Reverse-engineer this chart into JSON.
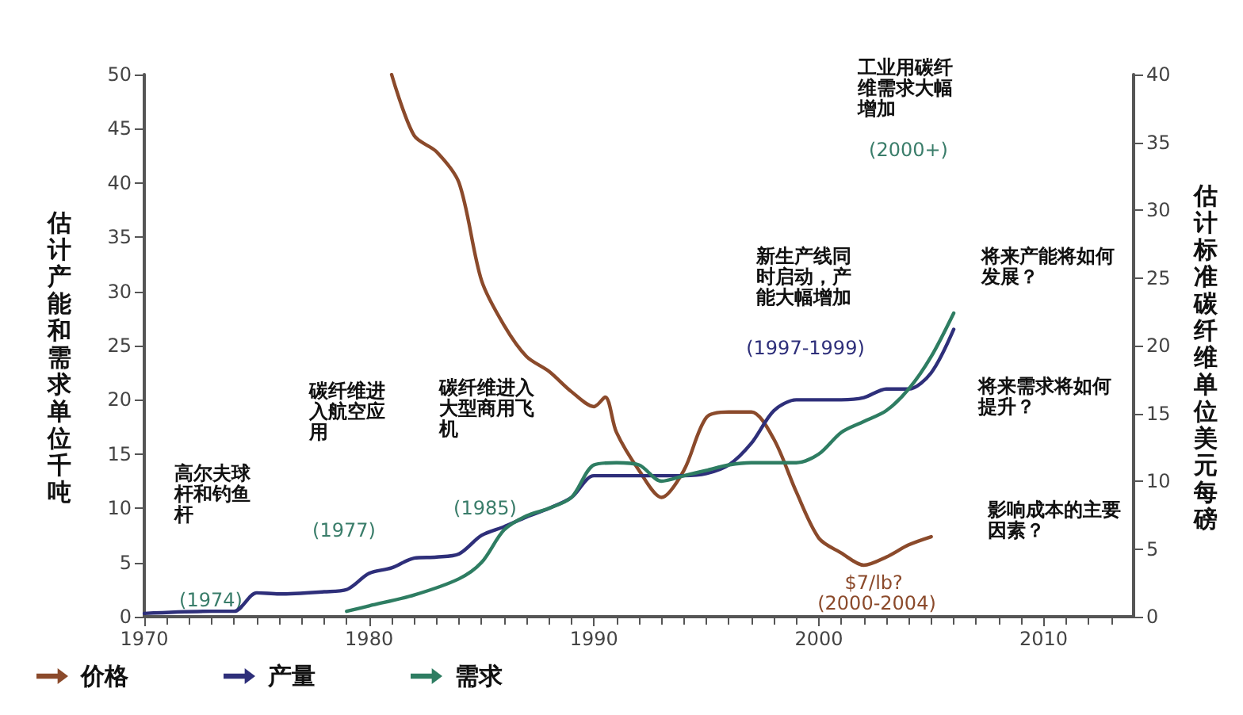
{
  "chart_data": {
    "type": "line",
    "ylabel": "估计产能和需求单位千吨",
    "y2label": "估计标准碳纤维单位美元每磅",
    "xlim": [
      1970,
      2014
    ],
    "xticks": [
      1970,
      1980,
      1990,
      2000,
      2010
    ],
    "ylim": [
      0,
      50
    ],
    "yticks": [
      0,
      5,
      10,
      15,
      20,
      25,
      30,
      35,
      40,
      45,
      50
    ],
    "y2lim": [
      0,
      40
    ],
    "y2ticks": [
      0,
      5,
      10,
      15,
      20,
      25,
      30,
      35,
      40
    ],
    "grid": false,
    "legend": "bottom left",
    "marker": "none",
    "line_style": "solid",
    "series": [
      {
        "name": "价格",
        "color": "#8b4a2b",
        "axis": "y2",
        "x": [
          1981,
          1982,
          1983,
          1984,
          1985,
          1986,
          1987,
          1988,
          1989,
          1990,
          1990.5,
          1991,
          1992,
          1993,
          1994,
          1995,
          1996,
          1997,
          1998,
          1999,
          2000,
          2001,
          2002,
          2003,
          2004,
          2005
        ],
        "values": [
          40,
          35.5,
          34.3,
          32,
          24.8,
          21.5,
          19.2,
          18.1,
          16.6,
          15.5,
          16.2,
          13.6,
          10.8,
          8.8,
          10.8,
          14.7,
          15.1,
          15.1,
          13.1,
          9.2,
          5.8,
          4.7,
          3.8,
          4.4,
          5.3,
          5.9
        ]
      },
      {
        "name": "产量",
        "color": "#2e2f7a",
        "x": [
          1970,
          1973,
          1974,
          1975,
          1976,
          1978,
          1979,
          1980,
          1981,
          1982,
          1983,
          1984,
          1985,
          1986,
          1987,
          1988,
          1989,
          1990,
          1992,
          1994,
          1995,
          1996,
          1997,
          1998,
          1999,
          2000,
          2001,
          2002,
          2003,
          2004,
          2005,
          2006
        ],
        "values": [
          0.3,
          0.5,
          0.5,
          2.2,
          2.1,
          2.3,
          2.5,
          4,
          4.5,
          5.4,
          5.5,
          5.8,
          7.5,
          8.3,
          9.2,
          10,
          11,
          13,
          13,
          13,
          13.2,
          14,
          16,
          19,
          20,
          20,
          20,
          20.2,
          21,
          21,
          22.5,
          26.5
        ]
      },
      {
        "name": "需求",
        "color": "#2e7d62",
        "x": [
          1979,
          1980,
          1982,
          1984,
          1985,
          1986,
          1987,
          1988,
          1989,
          1990,
          1991,
          1992,
          1993,
          1994,
          1995,
          1996,
          1997,
          1998,
          1999,
          2000,
          2001,
          2002,
          2003,
          2004,
          2005,
          2006
        ],
        "values": [
          0.5,
          1,
          2,
          3.5,
          5,
          8,
          9.3,
          10,
          11,
          14,
          14.2,
          14,
          12.5,
          13,
          13.5,
          14,
          14.2,
          14.2,
          14.2,
          15,
          17,
          18,
          19,
          21,
          24,
          28
        ]
      }
    ],
    "annotations": [
      "高尔夫球杆和钓鱼杆",
      "(1974)",
      "碳纤维进入航空应用",
      "(1977)",
      "碳纤维进入大型商用飞机",
      "(1985)",
      "新生产线同时启动，产能大幅增加",
      "(1997-1999)",
      "工业用碳纤维需求大幅增加",
      "(2000+)",
      "将来产能将如何发展？",
      "将来需求将如何提升？",
      "影响成本的主要因素？",
      "$7/lb? (2000-2004)"
    ]
  }
}
